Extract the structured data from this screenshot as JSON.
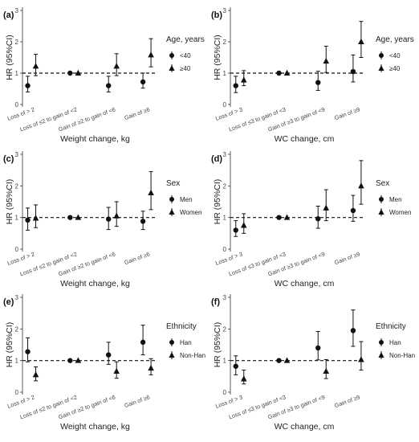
{
  "chart_data": [
    {
      "panel": "(a)",
      "type": "scatter",
      "xlabel": "Weight change, kg",
      "ylabel": "HR (95%CI)",
      "categories": [
        "Loss of > 2",
        "Loss of ≤2 to gain of <2",
        "Gain of ≥2 to gain of <6",
        "Gain of ≥6"
      ],
      "ylim": [
        0,
        3
      ],
      "yticks": [
        0,
        1,
        2,
        3
      ],
      "reference_line": 1,
      "legend": {
        "title": "Age, years",
        "position": "right"
      },
      "series": [
        {
          "name": "<40",
          "marker": "circle",
          "values": [
            0.6,
            1.0,
            0.6,
            0.72
          ],
          "lower": [
            0.4,
            1.0,
            0.4,
            0.52
          ],
          "upper": [
            0.9,
            1.0,
            0.9,
            1.0
          ]
        },
        {
          "name": "≥40",
          "marker": "triangle",
          "values": [
            1.22,
            1.0,
            1.22,
            1.58
          ],
          "lower": [
            0.92,
            1.0,
            0.92,
            1.2
          ],
          "upper": [
            1.6,
            1.0,
            1.62,
            2.1
          ]
        }
      ]
    },
    {
      "panel": "(b)",
      "type": "scatter",
      "xlabel": "WC change, cm",
      "ylabel": "HR (95%CI)",
      "categories": [
        "Loss of > 3",
        "Loss of ≤3 to gain of <3",
        "Gain of ≥3 to gain of <9",
        "Gain of ≥9"
      ],
      "ylim": [
        0,
        3
      ],
      "yticks": [
        0,
        1,
        2,
        3
      ],
      "reference_line": 1,
      "legend": {
        "title": "Age, years",
        "position": "right"
      },
      "series": [
        {
          "name": "<40",
          "marker": "circle",
          "values": [
            0.6,
            1.0,
            0.7,
            1.05
          ],
          "lower": [
            0.38,
            1.0,
            0.45,
            0.72
          ],
          "upper": [
            0.9,
            1.0,
            1.06,
            1.58
          ]
        },
        {
          "name": "≥40",
          "marker": "triangle",
          "values": [
            0.78,
            1.0,
            1.38,
            2.0
          ],
          "lower": [
            0.6,
            1.0,
            1.02,
            1.5
          ],
          "upper": [
            1.08,
            1.0,
            1.86,
            2.65
          ]
        }
      ]
    },
    {
      "panel": "(c)",
      "type": "scatter",
      "xlabel": "Weight change, kg",
      "ylabel": "HR (95%CI)",
      "categories": [
        "Loss of > 2",
        "Loss of ≤2 to gain of <2",
        "Gain of ≥2 to gain of <6",
        "Gain of ≥6"
      ],
      "ylim": [
        0,
        3
      ],
      "yticks": [
        0,
        1,
        2,
        3
      ],
      "reference_line": 1,
      "legend": {
        "title": "Sex",
        "position": "right"
      },
      "series": [
        {
          "name": "Men",
          "marker": "circle",
          "values": [
            0.92,
            1.0,
            0.95,
            0.88
          ],
          "lower": [
            0.6,
            1.0,
            0.62,
            0.62
          ],
          "upper": [
            1.3,
            1.0,
            1.32,
            1.2
          ]
        },
        {
          "name": "Women",
          "marker": "triangle",
          "values": [
            0.98,
            1.0,
            1.05,
            1.78
          ],
          "lower": [
            0.68,
            1.0,
            0.72,
            1.25
          ],
          "upper": [
            1.4,
            1.0,
            1.5,
            2.45
          ]
        }
      ]
    },
    {
      "panel": "(d)",
      "type": "scatter",
      "xlabel": "WC change, cm",
      "ylabel": "HR (95%CI)",
      "categories": [
        "Loss of > 3",
        "Loss of ≤3 to gain of <3",
        "Gain of ≥3 to gain of <9",
        "Gain of ≥9"
      ],
      "ylim": [
        0,
        3
      ],
      "yticks": [
        0,
        1,
        2,
        3
      ],
      "reference_line": 1,
      "legend": {
        "title": "Sex",
        "position": "right"
      },
      "series": [
        {
          "name": "Men",
          "marker": "circle",
          "values": [
            0.6,
            1.0,
            0.96,
            1.22
          ],
          "lower": [
            0.4,
            1.0,
            0.66,
            0.88
          ],
          "upper": [
            0.9,
            1.0,
            1.36,
            1.7
          ]
        },
        {
          "name": "Women",
          "marker": "triangle",
          "values": [
            0.75,
            1.0,
            1.3,
            2.0
          ],
          "lower": [
            0.5,
            1.0,
            0.9,
            1.42
          ],
          "upper": [
            1.12,
            1.0,
            1.88,
            2.8
          ]
        }
      ]
    },
    {
      "panel": "(e)",
      "type": "scatter",
      "xlabel": "Weight change, kg",
      "ylabel": "HR (95%CI)",
      "categories": [
        "Loss of > 2",
        "Loss of ≤2 to gain of <2",
        "Gain of ≥2 to gain of <6",
        "Gain of ≥6"
      ],
      "ylim": [
        0,
        3
      ],
      "yticks": [
        0,
        1,
        2,
        3
      ],
      "reference_line": 1,
      "legend": {
        "title": "Ethnicity",
        "position": "right"
      },
      "series": [
        {
          "name": "Han",
          "marker": "circle",
          "values": [
            1.28,
            1.0,
            1.18,
            1.58
          ],
          "lower": [
            0.96,
            1.0,
            0.88,
            1.18
          ],
          "upper": [
            1.72,
            1.0,
            1.58,
            2.12
          ]
        },
        {
          "name": "Non-Han",
          "marker": "triangle",
          "values": [
            0.55,
            1.0,
            0.66,
            0.76
          ],
          "lower": [
            0.36,
            1.0,
            0.44,
            0.55
          ],
          "upper": [
            0.8,
            1.0,
            0.96,
            1.06
          ]
        }
      ]
    },
    {
      "panel": "(f)",
      "type": "scatter",
      "xlabel": "WC change, cm",
      "ylabel": "HR (95%CI)",
      "categories": [
        "Loss of > 3",
        "Loss of ≤3 to gain of <3",
        "Gain of ≥3 to gain of <9",
        "Gain of ≥9"
      ],
      "ylim": [
        0,
        3
      ],
      "yticks": [
        0,
        1,
        2,
        3
      ],
      "reference_line": 1,
      "legend": {
        "title": "Ethnicity",
        "position": "right"
      },
      "series": [
        {
          "name": "Han",
          "marker": "circle",
          "values": [
            0.82,
            1.0,
            1.4,
            1.95
          ],
          "lower": [
            0.55,
            1.0,
            1.02,
            1.45
          ],
          "upper": [
            1.15,
            1.0,
            1.92,
            2.6
          ]
        },
        {
          "name": "Non-Han",
          "marker": "triangle",
          "values": [
            0.42,
            1.0,
            0.66,
            1.03
          ],
          "lower": [
            0.26,
            1.0,
            0.43,
            0.7
          ],
          "upper": [
            0.7,
            1.0,
            1.03,
            1.6
          ]
        }
      ]
    }
  ]
}
